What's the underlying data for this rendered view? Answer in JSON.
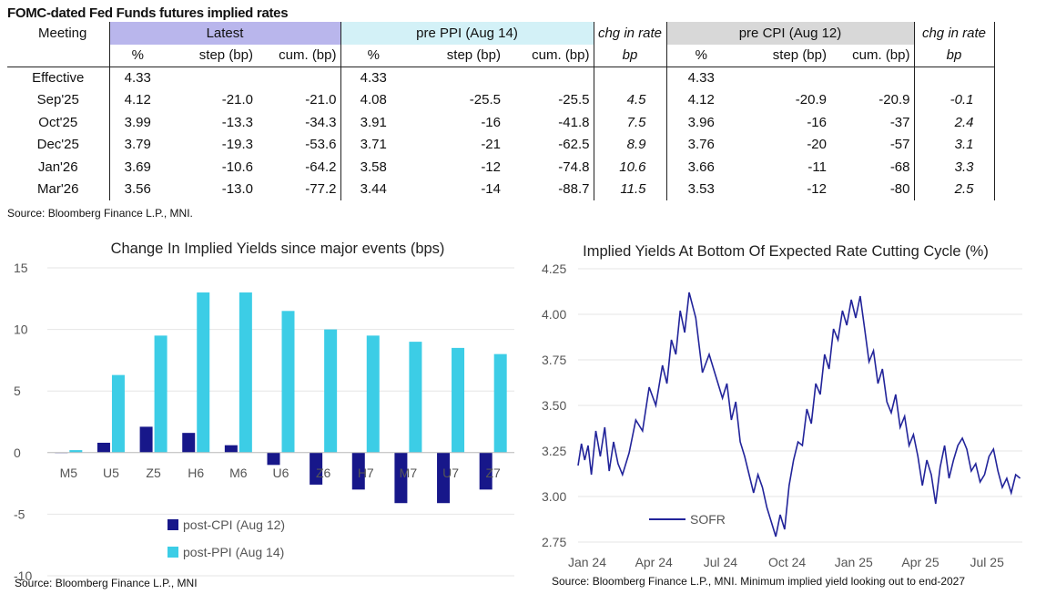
{
  "table": {
    "title": "FOMC-dated Fed Funds futures implied rates",
    "meeting_header": "Meeting",
    "groups": {
      "latest": "Latest",
      "pre_ppi": "pre PPI (Aug 14)",
      "chg_ppi": "chg in rate",
      "pre_cpi": "pre CPI (Aug 12)",
      "chg_cpi": "chg in rate"
    },
    "sub": {
      "pct": "%",
      "step": "step (bp)",
      "cum": "cum. (bp)",
      "bp": "bp"
    },
    "rows": [
      {
        "meeting": "Effective",
        "l_pct": "4.33",
        "l_step": "",
        "l_cum": "",
        "p_pct": "4.33",
        "p_step": "",
        "p_cum": "",
        "p_chg": "",
        "c_pct": "4.33",
        "c_step": "",
        "c_cum": "",
        "c_chg": ""
      },
      {
        "meeting": "Sep'25",
        "l_pct": "4.12",
        "l_step": "-21.0",
        "l_cum": "-21.0",
        "p_pct": "4.08",
        "p_step": "-25.5",
        "p_cum": "-25.5",
        "p_chg": "4.5",
        "c_pct": "4.12",
        "c_step": "-20.9",
        "c_cum": "-20.9",
        "c_chg": "-0.1"
      },
      {
        "meeting": "Oct'25",
        "l_pct": "3.99",
        "l_step": "-13.3",
        "l_cum": "-34.3",
        "p_pct": "3.91",
        "p_step": "-16",
        "p_cum": "-41.8",
        "p_chg": "7.5",
        "c_pct": "3.96",
        "c_step": "-16",
        "c_cum": "-37",
        "c_chg": "2.4"
      },
      {
        "meeting": "Dec'25",
        "l_pct": "3.79",
        "l_step": "-19.3",
        "l_cum": "-53.6",
        "p_pct": "3.71",
        "p_step": "-21",
        "p_cum": "-62.5",
        "p_chg": "8.9",
        "c_pct": "3.76",
        "c_step": "-20",
        "c_cum": "-57",
        "c_chg": "3.1"
      },
      {
        "meeting": "Jan'26",
        "l_pct": "3.69",
        "l_step": "-10.6",
        "l_cum": "-64.2",
        "p_pct": "3.58",
        "p_step": "-12",
        "p_cum": "-74.8",
        "p_chg": "10.6",
        "c_pct": "3.66",
        "c_step": "-11",
        "c_cum": "-68",
        "c_chg": "3.3"
      },
      {
        "meeting": "Mar'26",
        "l_pct": "3.56",
        "l_step": "-13.0",
        "l_cum": "-77.2",
        "p_pct": "3.44",
        "p_step": "-14",
        "p_cum": "-88.7",
        "p_chg": "11.5",
        "c_pct": "3.53",
        "c_step": "-12",
        "c_cum": "-80",
        "c_chg": "2.5"
      }
    ],
    "source": "Source: Bloomberg Finance L.P., MNI."
  },
  "colors": {
    "cpi": "#17178a",
    "ppi": "#3ccde6",
    "line": "#22249a"
  },
  "chart_data": [
    {
      "type": "bar",
      "title": "Change In Implied Yields since major events (bps)",
      "categories": [
        "M5",
        "U5",
        "Z5",
        "H6",
        "M6",
        "U6",
        "Z6",
        "H7",
        "M7",
        "U7",
        "Z7"
      ],
      "series": [
        {
          "name": "post-CPI (Aug 12)",
          "values": [
            0.0,
            0.8,
            2.1,
            1.6,
            0.6,
            -1.0,
            -2.6,
            -3.0,
            -4.1,
            -4.1,
            -3.0
          ]
        },
        {
          "name": "post-PPI (Aug 14)",
          "values": [
            0.2,
            6.3,
            9.5,
            13.0,
            13.0,
            11.5,
            10.0,
            9.5,
            9.0,
            8.5,
            8.0
          ]
        }
      ],
      "ylim": [
        -10,
        15
      ],
      "yticks": [
        "15",
        "10",
        "5",
        "0",
        "-5",
        "-10"
      ],
      "legend_position": "bottom-left",
      "xlabel": "",
      "ylabel": "",
      "source": "Source: Bloomberg Finance L.P., MNI"
    },
    {
      "type": "line",
      "title": "Implied Yields At Bottom Of Expected Rate Cutting Cycle (%)",
      "series": [
        {
          "name": "SOFR",
          "x": [
            0,
            0.15,
            0.3,
            0.45,
            0.6,
            0.8,
            1,
            1.2,
            1.4,
            1.6,
            1.8,
            2,
            2.3,
            2.6,
            2.9,
            3.2,
            3.5,
            3.8,
            4,
            4.2,
            4.4,
            4.6,
            4.8,
            5,
            5.3,
            5.6,
            5.9,
            6.2,
            6.5,
            6.7,
            6.9,
            7.1,
            7.3,
            7.5,
            7.7,
            7.9,
            8.1,
            8.3,
            8.5,
            8.7,
            8.9,
            9.1,
            9.3,
            9.5,
            9.7,
            9.9,
            10.1,
            10.3,
            10.5,
            10.7,
            10.9,
            11.1,
            11.3,
            11.5,
            11.7,
            11.9,
            12.1,
            12.3,
            12.5,
            12.7,
            12.9,
            13.1,
            13.3,
            13.5,
            13.7,
            13.9,
            14.1,
            14.3,
            14.5,
            14.7,
            14.9,
            15.1,
            15.3,
            15.5,
            15.7,
            15.9,
            16.1,
            16.3,
            16.5,
            16.7,
            16.9,
            17.1,
            17.3,
            17.5,
            17.7,
            17.9,
            18.1,
            18.3,
            18.5,
            18.7,
            18.9,
            19.1,
            19.3,
            19.5,
            19.7,
            19.9
          ],
          "values": [
            3.17,
            3.29,
            3.2,
            3.28,
            3.12,
            3.36,
            3.22,
            3.38,
            3.14,
            3.3,
            3.18,
            3.12,
            3.24,
            3.42,
            3.36,
            3.6,
            3.5,
            3.72,
            3.62,
            3.86,
            3.78,
            4.02,
            3.9,
            4.12,
            3.98,
            3.68,
            3.78,
            3.66,
            3.54,
            3.62,
            3.42,
            3.52,
            3.3,
            3.22,
            3.12,
            3.02,
            3.12,
            3.05,
            2.94,
            2.86,
            2.78,
            2.9,
            2.82,
            3.06,
            3.2,
            3.3,
            3.28,
            3.48,
            3.4,
            3.62,
            3.56,
            3.78,
            3.7,
            3.92,
            3.86,
            4.02,
            3.94,
            4.08,
            3.98,
            4.1,
            3.92,
            3.74,
            3.8,
            3.62,
            3.7,
            3.52,
            3.46,
            3.56,
            3.38,
            3.44,
            3.28,
            3.34,
            3.22,
            3.06,
            3.2,
            3.12,
            2.96,
            3.16,
            3.28,
            3.1,
            3.2,
            3.28,
            3.32,
            3.26,
            3.14,
            3.18,
            3.08,
            3.12,
            3.22,
            3.26,
            3.14,
            3.05,
            3.1,
            3.02,
            3.12,
            3.1
          ]
        }
      ],
      "xtick_labels": [
        "Jan 24",
        "Apr 24",
        "Jul 24",
        "Oct 24",
        "Jan 25",
        "Apr 25",
        "Jul 25"
      ],
      "xtick_months": [
        0,
        3,
        6,
        9,
        12,
        15,
        18
      ],
      "x_units": "months since Jan 2024",
      "xlim": [
        0,
        20
      ],
      "ylim": [
        2.75,
        4.25
      ],
      "yticks": [
        "4.25",
        "4.00",
        "3.75",
        "3.50",
        "3.25",
        "3.00",
        "2.75"
      ],
      "legend_position": "bottom-left",
      "xlabel": "",
      "ylabel": "",
      "source": "Source: Bloomberg Finance L.P., MNI. Minimum implied yield looking out to end-2027"
    }
  ]
}
